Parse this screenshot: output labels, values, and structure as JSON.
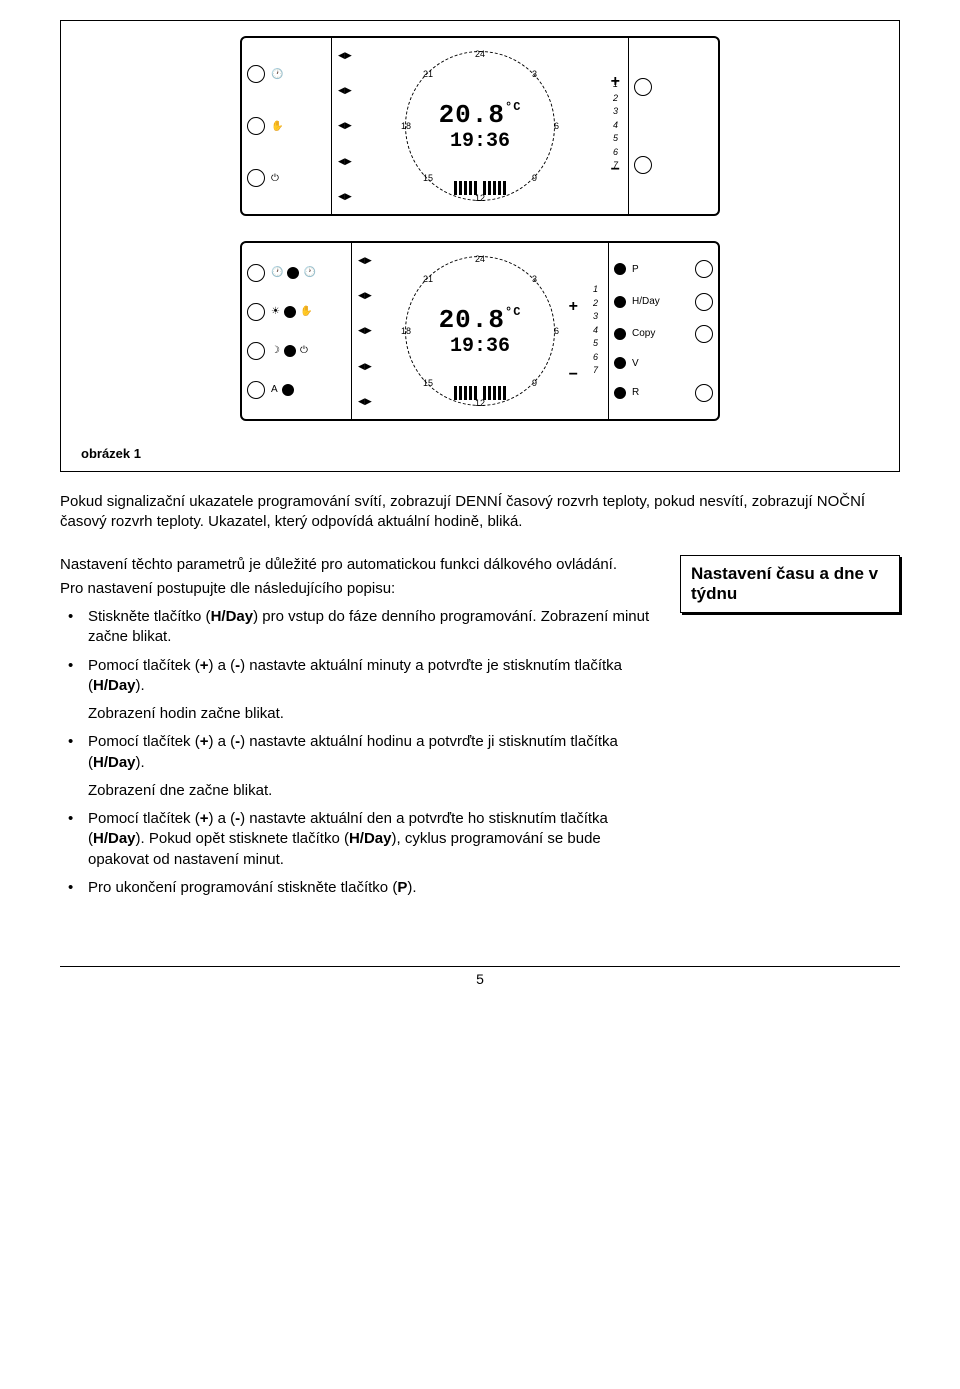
{
  "device": {
    "temp": "20.8",
    "temp_unit": "°C",
    "time": "19:36",
    "dial_nums": {
      "n24": "24",
      "n3": "3",
      "n6": "6",
      "n9": "9",
      "n12": "12",
      "n15": "15",
      "n18": "18",
      "n21": "21"
    },
    "days": "1\n2\n3\n4\n5\n6\n7",
    "right_labels": {
      "p": "P",
      "hday": "H/Day",
      "copy": "Copy",
      "v": "V",
      "r": "R"
    },
    "left_labels": {
      "a": "A"
    }
  },
  "caption": "obrázek 1",
  "intro": "Pokud signalizační ukazatele programování svítí, zobrazují DENNÍ časový rozvrh teploty, pokud nesvítí, zobrazují NOČNÍ časový rozvrh teploty. Ukazatel, který odpovídá aktuální hodině, bliká.",
  "lead1": "Nastavení těchto parametrů je důležité pro automatickou funkci dálkového ovládání.",
  "lead2": "Pro nastavení postupujte dle následujícího popisu:",
  "bullets": [
    "Stiskněte tlačítko (<b>H/Day</b>) pro vstup do fáze denního programování. Zobrazení minut začne blikat.",
    "Pomocí tlačítek (<b>+</b>) a (<b>-</b>) nastavte aktuální minuty a potvrďte je stisknutím tlačítka (<b>H/Day</b>).",
    "Pomocí tlačítek (<b>+</b>) a (<b>-</b>) nastavte aktuální hodinu a potvrďte ji stisknutím tlačítka (<b>H/Day</b>).",
    "Pomocí tlačítek (<b>+</b>) a (<b>-</b>) nastavte aktuální den a potvrďte ho stisknutím tlačítka (<b>H/Day</b>). Pokud opět stisknete tlačítko (<b>H/Day</b>), cyklus programování se bude opakovat od nastavení minut.",
    "Pro ukončení programování stiskněte tlačítko (<b>P</b>)."
  ],
  "sub1": "Zobrazení hodin začne blikat.",
  "sub2": "Zobrazení dne začne blikat.",
  "sidebar": "Nastavení času a dne v týdnu",
  "page": "5"
}
